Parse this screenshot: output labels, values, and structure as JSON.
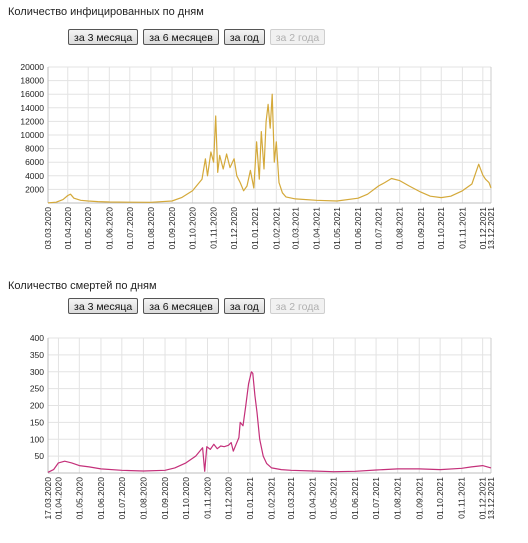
{
  "buttons": {
    "three_months": "за 3 месяца",
    "six_months": "за 6 месяцев",
    "year": "за год",
    "two_years": "за 2 года"
  },
  "chart_data": [
    {
      "type": "line",
      "title": "Количество инфицированных по дням",
      "color": "#d4a93a",
      "ylim": [
        0,
        20000
      ],
      "yticks": [
        2000,
        4000,
        6000,
        8000,
        10000,
        12000,
        14000,
        16000,
        18000,
        20000
      ],
      "x_range": [
        "03.03.2020",
        "13.12.2021"
      ],
      "xtick_labels": [
        "03.03.2020",
        "01.04.2020",
        "01.05.2020",
        "01.06.2020",
        "01.07.2020",
        "01.08.2020",
        "01.09.2020",
        "01.10.2020",
        "01.11.2020",
        "01.12.2020",
        "01.01.2021",
        "01.02.2021",
        "01.03.2021",
        "01.04.2021",
        "01.05.2021",
        "01.06.2021",
        "01.07.2021",
        "01.08.2021",
        "01.09.2021",
        "01.10.2021",
        "01.11.2021",
        "01.12.2021",
        "13.12.2021"
      ],
      "grid": true,
      "series": [
        {
          "points": [
            [
              "03.03.2020",
              10
            ],
            [
              "15.03.2020",
              120
            ],
            [
              "25.03.2020",
              500
            ],
            [
              "01.04.2020",
              1100
            ],
            [
              "05.04.2020",
              1300
            ],
            [
              "10.04.2020",
              700
            ],
            [
              "20.04.2020",
              400
            ],
            [
              "01.05.2020",
              300
            ],
            [
              "15.05.2020",
              200
            ],
            [
              "01.06.2020",
              150
            ],
            [
              "01.07.2020",
              120
            ],
            [
              "01.08.2020",
              100
            ],
            [
              "01.09.2020",
              300
            ],
            [
              "15.09.2020",
              800
            ],
            [
              "01.10.2020",
              1800
            ],
            [
              "15.10.2020",
              3500
            ],
            [
              "20.10.2020",
              6500
            ],
            [
              "23.10.2020",
              4000
            ],
            [
              "28.10.2020",
              7500
            ],
            [
              "01.11.2020",
              6000
            ],
            [
              "04.11.2020",
              12800
            ],
            [
              "07.11.2020",
              4500
            ],
            [
              "10.11.2020",
              7000
            ],
            [
              "15.11.2020",
              5000
            ],
            [
              "20.11.2020",
              7200
            ],
            [
              "25.11.2020",
              5200
            ],
            [
              "01.12.2020",
              6500
            ],
            [
              "05.12.2020",
              4000
            ],
            [
              "10.12.2020",
              3000
            ],
            [
              "15.12.2020",
              1800
            ],
            [
              "20.12.2020",
              2500
            ],
            [
              "25.12.2020",
              4800
            ],
            [
              "30.12.2020",
              2200
            ],
            [
              "03.01.2021",
              9000
            ],
            [
              "07.01.2021",
              3500
            ],
            [
              "10.01.2021",
              10500
            ],
            [
              "14.01.2021",
              5000
            ],
            [
              "17.01.2021",
              12000
            ],
            [
              "20.01.2021",
              14500
            ],
            [
              "23.01.2021",
              11000
            ],
            [
              "26.01.2021",
              16000
            ],
            [
              "29.01.2021",
              6000
            ],
            [
              "01.02.2021",
              9000
            ],
            [
              "05.02.2021",
              3000
            ],
            [
              "10.02.2021",
              1500
            ],
            [
              "15.02.2021",
              900
            ],
            [
              "01.03.2021",
              600
            ],
            [
              "01.04.2021",
              400
            ],
            [
              "01.05.2021",
              300
            ],
            [
              "01.06.2021",
              700
            ],
            [
              "15.06.2021",
              1300
            ],
            [
              "01.07.2021",
              2500
            ],
            [
              "10.07.2021",
              3000
            ],
            [
              "20.07.2021",
              3600
            ],
            [
              "01.08.2021",
              3300
            ],
            [
              "15.08.2021",
              2500
            ],
            [
              "01.09.2021",
              1600
            ],
            [
              "15.09.2021",
              1000
            ],
            [
              "01.10.2021",
              800
            ],
            [
              "15.10.2021",
              1000
            ],
            [
              "01.11.2021",
              1800
            ],
            [
              "15.11.2021",
              2800
            ],
            [
              "25.11.2021",
              5700
            ],
            [
              "01.12.2021",
              4100
            ],
            [
              "05.12.2021",
              3500
            ],
            [
              "10.12.2021",
              3000
            ],
            [
              "13.12.2021",
              2200
            ]
          ]
        }
      ]
    },
    {
      "type": "line",
      "title": "Количество смертей по дням",
      "color": "#c4307a",
      "ylim": [
        0,
        400
      ],
      "yticks": [
        50,
        100,
        150,
        200,
        250,
        300,
        350,
        400
      ],
      "x_range": [
        "17.03.2020",
        "13.12.2021"
      ],
      "xtick_labels": [
        "17.03.2020",
        "01.04.2020",
        "01.05.2020",
        "01.06.2020",
        "01.07.2020",
        "01.08.2020",
        "01.09.2020",
        "01.10.2020",
        "01.11.2020",
        "01.12.2020",
        "01.01.2021",
        "01.02.2021",
        "01.03.2021",
        "01.04.2021",
        "01.05.2021",
        "01.06.2021",
        "01.07.2021",
        "01.08.2021",
        "01.09.2021",
        "01.10.2021",
        "01.11.2021",
        "01.12.2021",
        "13.12.2021"
      ],
      "grid": true,
      "series": [
        {
          "points": [
            [
              "17.03.2020",
              2
            ],
            [
              "25.03.2020",
              10
            ],
            [
              "01.04.2020",
              30
            ],
            [
              "10.04.2020",
              35
            ],
            [
              "20.04.2020",
              30
            ],
            [
              "01.05.2020",
              22
            ],
            [
              "15.05.2020",
              18
            ],
            [
              "01.06.2020",
              12
            ],
            [
              "01.07.2020",
              8
            ],
            [
              "01.08.2020",
              6
            ],
            [
              "01.09.2020",
              8
            ],
            [
              "15.09.2020",
              15
            ],
            [
              "01.10.2020",
              30
            ],
            [
              "15.10.2020",
              50
            ],
            [
              "25.10.2020",
              75
            ],
            [
              "28.10.2020",
              5
            ],
            [
              "31.10.2020",
              78
            ],
            [
              "05.11.2020",
              70
            ],
            [
              "10.11.2020",
              85
            ],
            [
              "15.11.2020",
              72
            ],
            [
              "20.11.2020",
              80
            ],
            [
              "25.11.2020",
              78
            ],
            [
              "01.12.2020",
              82
            ],
            [
              "05.12.2020",
              90
            ],
            [
              "08.12.2020",
              65
            ],
            [
              "12.12.2020",
              85
            ],
            [
              "16.12.2020",
              105
            ],
            [
              "18.12.2020",
              150
            ],
            [
              "22.12.2020",
              140
            ],
            [
              "26.12.2020",
              200
            ],
            [
              "30.12.2020",
              265
            ],
            [
              "03.01.2021",
              300
            ],
            [
              "05.01.2021",
              295
            ],
            [
              "08.01.2021",
              230
            ],
            [
              "11.01.2021",
              180
            ],
            [
              "15.01.2021",
              100
            ],
            [
              "20.01.2021",
              50
            ],
            [
              "25.01.2021",
              28
            ],
            [
              "01.02.2021",
              15
            ],
            [
              "15.02.2021",
              10
            ],
            [
              "01.03.2021",
              8
            ],
            [
              "01.04.2021",
              6
            ],
            [
              "01.05.2021",
              4
            ],
            [
              "01.06.2021",
              5
            ],
            [
              "01.07.2021",
              9
            ],
            [
              "01.08.2021",
              12
            ],
            [
              "01.09.2021",
              12
            ],
            [
              "01.10.2021",
              10
            ],
            [
              "01.11.2021",
              14
            ],
            [
              "15.11.2021",
              18
            ],
            [
              "01.12.2021",
              22
            ],
            [
              "13.12.2021",
              15
            ]
          ]
        }
      ]
    }
  ]
}
